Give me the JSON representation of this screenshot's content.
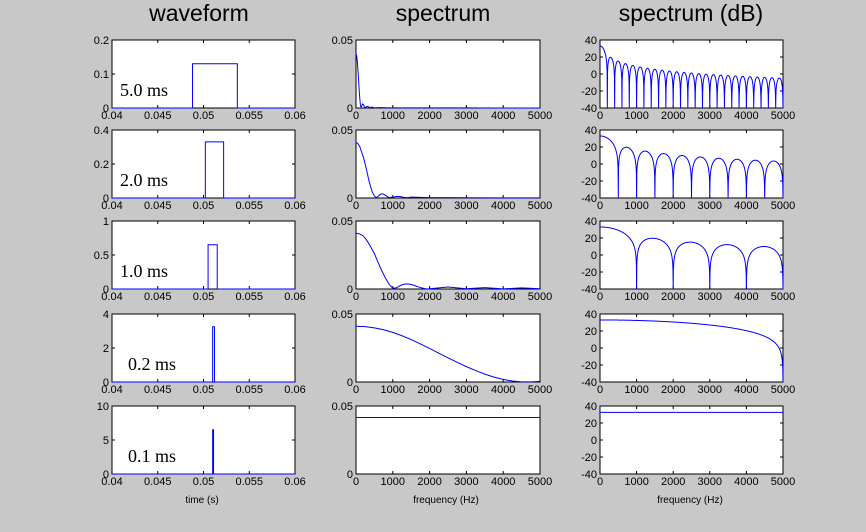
{
  "figure": {
    "column_titles": [
      "waveform",
      "spectrum",
      "spectrum (dB)"
    ],
    "xlabels": [
      "time (s)",
      "frequency (Hz)",
      "frequency (Hz)"
    ]
  },
  "colors": {
    "line": "#0000ff",
    "axes_bg": "#ffffff",
    "figure_bg": "#c8c8c8",
    "axis": "#000000"
  },
  "chart_data": [
    {
      "type": "line",
      "column": 0,
      "row": 0,
      "title": "",
      "panel_label": "5.0 ms",
      "xlabel": "",
      "xlim": [
        0.04,
        0.06
      ],
      "ylim": [
        0,
        0.2
      ],
      "xticks": [
        "0.04",
        "0.045",
        "0.05",
        "0.055",
        "0.06"
      ],
      "yticks": [
        "0",
        "0.1",
        "0.2"
      ],
      "grid": false,
      "legend": "none",
      "series": [
        {
          "x": [
            0.04,
            0.0488,
            0.0488,
            0.0537,
            0.0537,
            0.06
          ],
          "y": [
            0,
            0,
            0.13,
            0.13,
            0,
            0
          ]
        }
      ]
    },
    {
      "type": "line",
      "column": 0,
      "row": 1,
      "title": "",
      "panel_label": "2.0 ms",
      "xlabel": "",
      "xlim": [
        0.04,
        0.06
      ],
      "ylim": [
        0,
        0.4
      ],
      "xticks": [
        "0.04",
        "0.045",
        "0.05",
        "0.055",
        "0.06"
      ],
      "yticks": [
        "0",
        "0.2",
        "0.4"
      ],
      "grid": false,
      "legend": "none",
      "series": [
        {
          "x": [
            0.04,
            0.0502,
            0.0502,
            0.0522,
            0.0522,
            0.06
          ],
          "y": [
            0,
            0,
            0.33,
            0.33,
            0,
            0
          ]
        }
      ]
    },
    {
      "type": "line",
      "column": 0,
      "row": 2,
      "title": "",
      "panel_label": "1.0 ms",
      "xlabel": "",
      "xlim": [
        0.04,
        0.06
      ],
      "ylim": [
        0,
        1
      ],
      "xticks": [
        "0.04",
        "0.045",
        "0.05",
        "0.055",
        "0.06"
      ],
      "yticks": [
        "0",
        "0.5",
        "1"
      ],
      "grid": false,
      "legend": "none",
      "series": [
        {
          "x": [
            0.04,
            0.0505,
            0.0505,
            0.0515,
            0.0515,
            0.06
          ],
          "y": [
            0,
            0,
            0.65,
            0.65,
            0,
            0
          ]
        }
      ]
    },
    {
      "type": "line",
      "column": 0,
      "row": 3,
      "title": "",
      "panel_label": "0.2 ms",
      "xlabel": "",
      "xlim": [
        0.04,
        0.06
      ],
      "ylim": [
        0,
        4
      ],
      "xticks": [
        "0.04",
        "0.045",
        "0.05",
        "0.055",
        "0.06"
      ],
      "yticks": [
        "0",
        "2",
        "4"
      ],
      "grid": false,
      "legend": "none",
      "series": [
        {
          "x": [
            0.04,
            0.051,
            0.051,
            0.0512,
            0.0512,
            0.06
          ],
          "y": [
            0,
            0,
            3.25,
            3.25,
            0,
            0
          ]
        }
      ]
    },
    {
      "type": "line",
      "column": 0,
      "row": 4,
      "title": "",
      "panel_label": "0.1 ms",
      "xlabel": "time (s)",
      "xlim": [
        0.04,
        0.06
      ],
      "ylim": [
        0,
        10
      ],
      "xticks": [
        "0.04",
        "0.045",
        "0.05",
        "0.055",
        "0.06"
      ],
      "yticks": [
        "0",
        "5",
        "10"
      ],
      "grid": false,
      "legend": "none",
      "series": [
        {
          "x": [
            0.04,
            0.051,
            0.051,
            0.0511,
            0.0511,
            0.06
          ],
          "y": [
            0,
            0,
            6.5,
            6.5,
            0,
            0
          ]
        }
      ]
    },
    {
      "type": "line",
      "column": 1,
      "row": 0,
      "title": "",
      "xlabel": "",
      "xlim": [
        0,
        5000
      ],
      "ylim": [
        0,
        0.05
      ],
      "xticks": [
        "0",
        "1000",
        "2000",
        "3000",
        "4000",
        "5000"
      ],
      "yticks": [
        "0",
        "0.05"
      ],
      "grid": false,
      "legend": "none",
      "series": [
        {
          "x": [
            0,
            20,
            40,
            60,
            80,
            100,
            120,
            140,
            160,
            180,
            200,
            230,
            260,
            300,
            340,
            380,
            420,
            460,
            500,
            600,
            800,
            1000,
            2000,
            3000,
            4000,
            5000
          ],
          "y": [
            0.04,
            0.038,
            0.033,
            0.025,
            0.016,
            0.008,
            0.002,
            0.0005,
            0.002,
            0.003,
            0.0025,
            0.0008,
            0.0003,
            0.0012,
            0.0009,
            0.0002,
            0.0006,
            0.0005,
            0.0001,
            0.0003,
            0.0002,
            0.0001,
            0.0001,
            0.0001,
            0,
            0
          ]
        }
      ]
    },
    {
      "type": "line",
      "column": 1,
      "row": 1,
      "title": "",
      "xlabel": "",
      "xlim": [
        0,
        5000
      ],
      "ylim": [
        0,
        0.05
      ],
      "xticks": [
        "0",
        "1000",
        "2000",
        "3000",
        "4000",
        "5000"
      ],
      "yticks": [
        "0",
        "0.05"
      ],
      "grid": false,
      "legend": "none",
      "series": [
        {
          "x": [
            0,
            50,
            100,
            150,
            200,
            250,
            300,
            350,
            400,
            450,
            500,
            550,
            600,
            650,
            700,
            750,
            800,
            850,
            900,
            1000,
            1100,
            1200,
            1300,
            1400,
            1500,
            2000,
            2500,
            3000,
            4000,
            5000
          ],
          "y": [
            0.041,
            0.04,
            0.038,
            0.034,
            0.03,
            0.025,
            0.019,
            0.013,
            0.008,
            0.004,
            0.0015,
            0.0003,
            0.0012,
            0.0025,
            0.003,
            0.0028,
            0.002,
            0.001,
            0.0003,
            0.0006,
            0.0012,
            0.0011,
            0.0005,
            0.0003,
            0.0006,
            0.0003,
            0.0003,
            0.0002,
            0.0001,
            0.0001
          ]
        }
      ]
    },
    {
      "type": "line",
      "column": 1,
      "row": 2,
      "title": "",
      "xlabel": "",
      "xlim": [
        0,
        5000
      ],
      "ylim": [
        0,
        0.05
      ],
      "xticks": [
        "0",
        "1000",
        "2000",
        "3000",
        "4000",
        "5000"
      ],
      "yticks": [
        "0",
        "0.05"
      ],
      "grid": false,
      "legend": "none",
      "series": [
        {
          "x": [
            0,
            100,
            200,
            300,
            400,
            500,
            600,
            700,
            800,
            900,
            1000,
            1100,
            1200,
            1300,
            1400,
            1500,
            1600,
            1700,
            1800,
            1900,
            2000,
            2500,
            3000,
            3500,
            4000,
            4500,
            5000
          ],
          "y": [
            0.041,
            0.0405,
            0.039,
            0.0355,
            0.031,
            0.026,
            0.0195,
            0.0135,
            0.008,
            0.0035,
            0.0005,
            0.0009,
            0.0025,
            0.0035,
            0.0038,
            0.0033,
            0.0025,
            0.0015,
            0.0007,
            0.0001,
            0.0002,
            0.0015,
            0.0002,
            0.001,
            0.0001,
            0.0008,
            0.0002
          ]
        }
      ]
    },
    {
      "type": "line",
      "column": 1,
      "row": 3,
      "title": "",
      "xlabel": "",
      "xlim": [
        0,
        5000
      ],
      "ylim": [
        0,
        0.05
      ],
      "xticks": [
        "0",
        "1000",
        "2000",
        "3000",
        "4000",
        "5000"
      ],
      "yticks": [
        "0",
        "0.05"
      ],
      "grid": false,
      "legend": "none",
      "series": [
        {
          "x": [
            0,
            250,
            500,
            750,
            1000,
            1250,
            1500,
            1750,
            2000,
            2250,
            2500,
            2750,
            3000,
            3250,
            3500,
            3750,
            4000,
            4250,
            4500,
            4750,
            5000
          ],
          "y": [
            0.041,
            0.0407,
            0.0398,
            0.0384,
            0.0365,
            0.034,
            0.0312,
            0.028,
            0.0247,
            0.0212,
            0.0178,
            0.0145,
            0.0113,
            0.0084,
            0.0058,
            0.0036,
            0.0019,
            0.0007,
            0.0001,
            0.0001,
            0.0005
          ]
        }
      ]
    },
    {
      "type": "line",
      "column": 1,
      "row": 4,
      "title": "",
      "xlabel": "frequency (Hz)",
      "xlim": [
        0,
        5000
      ],
      "ylim": [
        0,
        0.05
      ],
      "xticks": [
        "0",
        "1000",
        "2000",
        "3000",
        "4000",
        "5000"
      ],
      "yticks": [
        "0",
        "0.05"
      ],
      "grid": false,
      "legend": "none",
      "series": [
        {
          "x": [
            0,
            5000
          ],
          "y": [
            0.0415,
            0.0415
          ]
        }
      ]
    },
    {
      "type": "line",
      "column": 2,
      "row": 0,
      "title": "",
      "xlabel": "",
      "scale": "dB",
      "xlim": [
        0,
        5000
      ],
      "ylim": [
        -40,
        40
      ],
      "xticks": [
        "0",
        "1000",
        "2000",
        "3000",
        "4000",
        "5000"
      ],
      "yticks": [
        "-40",
        "-20",
        "0",
        "20",
        "40"
      ],
      "grid": false,
      "legend": "none",
      "series": [
        {
          "lobes": {
            "first_null_hz": 200,
            "null_spacing_hz": 200,
            "peak_db_start": 33,
            "peak_db_decay_per_decade": 20,
            "null_floor_db": -40
          }
        }
      ]
    },
    {
      "type": "line",
      "column": 2,
      "row": 1,
      "title": "",
      "xlabel": "",
      "scale": "dB",
      "xlim": [
        0,
        5000
      ],
      "ylim": [
        -40,
        40
      ],
      "xticks": [
        "0",
        "1000",
        "2000",
        "3000",
        "4000",
        "5000"
      ],
      "yticks": [
        "-40",
        "-20",
        "0",
        "20",
        "40"
      ],
      "grid": false,
      "legend": "none",
      "series": [
        {
          "lobes": {
            "first_null_hz": 500,
            "null_spacing_hz": 500,
            "peak_db_start": 33,
            "peak_db_decay_per_decade": 20,
            "null_floor_db": -40
          }
        }
      ]
    },
    {
      "type": "line",
      "column": 2,
      "row": 2,
      "title": "",
      "xlabel": "",
      "scale": "dB",
      "xlim": [
        0,
        5000
      ],
      "ylim": [
        -40,
        40
      ],
      "xticks": [
        "0",
        "1000",
        "2000",
        "3000",
        "4000",
        "5000"
      ],
      "yticks": [
        "-40",
        "-20",
        "0",
        "20",
        "40"
      ],
      "grid": false,
      "legend": "none",
      "series": [
        {
          "lobes": {
            "first_null_hz": 1000,
            "null_spacing_hz": 1000,
            "peak_db_start": 33,
            "peak_db_decay_per_decade": 20,
            "null_floor_db": -40
          }
        }
      ]
    },
    {
      "type": "line",
      "column": 2,
      "row": 3,
      "title": "",
      "xlabel": "",
      "scale": "dB",
      "xlim": [
        0,
        5000
      ],
      "ylim": [
        -40,
        40
      ],
      "xticks": [
        "0",
        "1000",
        "2000",
        "3000",
        "4000",
        "5000"
      ],
      "yticks": [
        "-40",
        "-20",
        "0",
        "20",
        "40"
      ],
      "grid": false,
      "legend": "none",
      "series": [
        {
          "lobes": {
            "first_null_hz": 5000,
            "null_spacing_hz": 5000,
            "peak_db_start": 33,
            "peak_db_decay_per_decade": 20,
            "null_floor_db": -40
          }
        }
      ]
    },
    {
      "type": "line",
      "column": 2,
      "row": 4,
      "title": "",
      "xlabel": "frequency (Hz)",
      "scale": "dB",
      "xlim": [
        0,
        5000
      ],
      "ylim": [
        -40,
        40
      ],
      "xticks": [
        "0",
        "1000",
        "2000",
        "3000",
        "4000",
        "5000"
      ],
      "yticks": [
        "-40",
        "-20",
        "0",
        "20",
        "40"
      ],
      "grid": false,
      "legend": "none",
      "series": [
        {
          "x": [
            0,
            5000
          ],
          "y": [
            32.5,
            32.5
          ]
        }
      ]
    }
  ]
}
